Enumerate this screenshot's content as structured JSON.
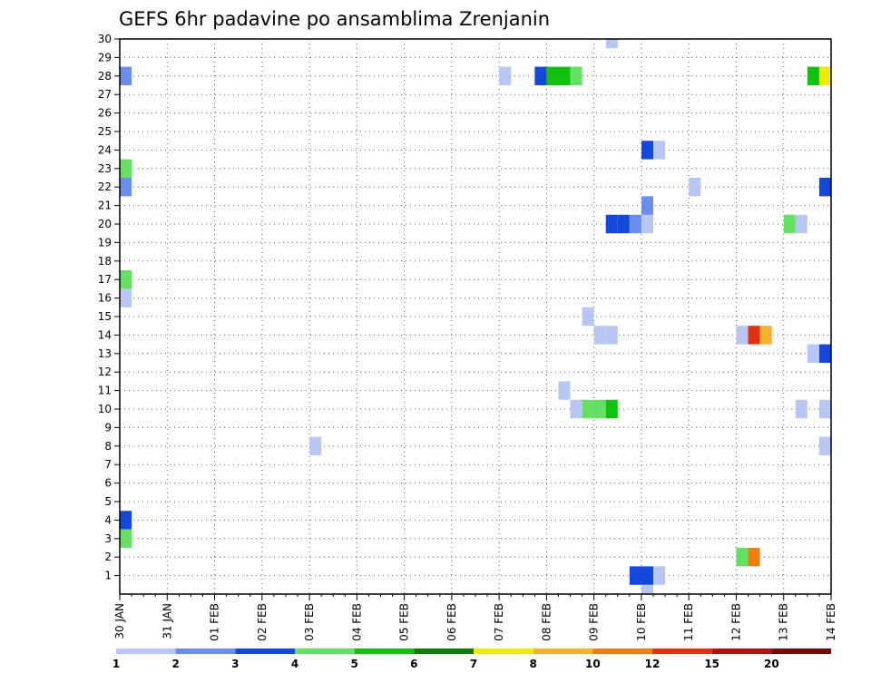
{
  "chart_data": {
    "type": "heatmap",
    "title": "GEFS 6hr padavine po ansamblima Zrenjanin",
    "xlabel": "",
    "ylabel": "",
    "x_tick_labels": [
      "30 JAN",
      "31 JAN",
      "01 FEB",
      "02 FEB",
      "03 FEB",
      "04 FEB",
      "05 FEB",
      "06 FEB",
      "07 FEB",
      "08 FEB",
      "09 FEB",
      "10 FEB",
      "11 FEB",
      "12 FEB",
      "13 FEB",
      "14 FEB"
    ],
    "x_range_days": [
      0,
      15
    ],
    "y_range": [
      0,
      30
    ],
    "y_ticks": [
      1,
      2,
      3,
      4,
      5,
      6,
      7,
      8,
      9,
      10,
      11,
      12,
      13,
      14,
      15,
      16,
      17,
      18,
      19,
      20,
      21,
      22,
      23,
      24,
      25,
      26,
      27,
      28,
      29,
      30
    ],
    "grid": true,
    "colorbar": {
      "levels": [
        "1",
        "2",
        "3",
        "4",
        "5",
        "6",
        "7",
        "8",
        "10",
        "12",
        "15",
        "20"
      ],
      "colors": [
        "#b8c6f4",
        "#6a8df0",
        "#1448dc",
        "#64e064",
        "#12c012",
        "#0c7a0c",
        "#f0ea00",
        "#f6b12e",
        "#f07e10",
        "#e03010",
        "#b01010",
        "#780808"
      ]
    },
    "cells": [
      {
        "day": 0.0,
        "member": 28,
        "value": 2.5
      },
      {
        "day": 0.0,
        "member": 23,
        "value": 4.5
      },
      {
        "day": 0.0,
        "member": 22,
        "value": 2.5
      },
      {
        "day": 0.0,
        "member": 17,
        "value": 4.5
      },
      {
        "day": 0.0,
        "member": 16,
        "value": 1.5
      },
      {
        "day": 0.0,
        "member": 4,
        "value": 3.5
      },
      {
        "day": 0.0,
        "member": 3,
        "value": 4.5
      },
      {
        "day": 4.0,
        "member": 8,
        "value": 1.5
      },
      {
        "day": 8.0,
        "member": 28,
        "value": 1.5
      },
      {
        "day": 8.75,
        "member": 28,
        "value": 3.5
      },
      {
        "day": 9.0,
        "member": 28,
        "value": 5.5
      },
      {
        "day": 9.25,
        "member": 28,
        "value": 5.5
      },
      {
        "day": 9.5,
        "member": 28,
        "value": 4.5
      },
      {
        "day": 9.25,
        "member": 11,
        "value": 1.5
      },
      {
        "day": 9.5,
        "member": 10,
        "value": 1.5
      },
      {
        "day": 9.75,
        "member": 10,
        "value": 4.5
      },
      {
        "day": 10.0,
        "member": 10,
        "value": 4.5
      },
      {
        "day": 10.25,
        "member": 10,
        "value": 5.5
      },
      {
        "day": 9.75,
        "member": 15,
        "value": 1.5
      },
      {
        "day": 10.0,
        "member": 14,
        "value": 1.5
      },
      {
        "day": 10.25,
        "member": 14,
        "value": 1.5
      },
      {
        "day": 10.25,
        "member": 30,
        "value": 1.5
      },
      {
        "day": 10.25,
        "member": 20,
        "value": 3.5
      },
      {
        "day": 10.5,
        "member": 20,
        "value": 3.5
      },
      {
        "day": 10.75,
        "member": 20,
        "value": 2.5
      },
      {
        "day": 11.0,
        "member": 20,
        "value": 1.5
      },
      {
        "day": 11.0,
        "member": 21,
        "value": 2.5
      },
      {
        "day": 11.0,
        "member": 24,
        "value": 3.5
      },
      {
        "day": 11.25,
        "member": 24,
        "value": 1.5
      },
      {
        "day": 10.75,
        "member": 1,
        "value": 3.5
      },
      {
        "day": 11.0,
        "member": 1,
        "value": 3.5
      },
      {
        "day": 11.25,
        "member": 1,
        "value": 1.5
      },
      {
        "day": 11.0,
        "member": 0,
        "value": 1.5
      },
      {
        "day": 12.0,
        "member": 22,
        "value": 1.5
      },
      {
        "day": 13.0,
        "member": 14,
        "value": 1.5
      },
      {
        "day": 13.25,
        "member": 14,
        "value": 13.5
      },
      {
        "day": 13.5,
        "member": 14,
        "value": 9.0
      },
      {
        "day": 13.0,
        "member": 2,
        "value": 4.5
      },
      {
        "day": 13.25,
        "member": 2,
        "value": 11.0
      },
      {
        "day": 14.0,
        "member": 20,
        "value": 4.5
      },
      {
        "day": 14.25,
        "member": 20,
        "value": 1.5
      },
      {
        "day": 14.25,
        "member": 10,
        "value": 1.5
      },
      {
        "day": 14.5,
        "member": 28,
        "value": 5.5
      },
      {
        "day": 14.75,
        "member": 28,
        "value": 7.5
      },
      {
        "day": 14.75,
        "member": 22,
        "value": 3.5
      },
      {
        "day": 14.5,
        "member": 13,
        "value": 1.5
      },
      {
        "day": 14.75,
        "member": 13,
        "value": 3.5
      },
      {
        "day": 14.75,
        "member": 10,
        "value": 1.5
      },
      {
        "day": 14.75,
        "member": 8,
        "value": 1.5
      }
    ]
  }
}
